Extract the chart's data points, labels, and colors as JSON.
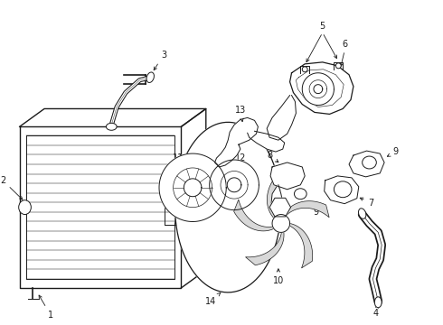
{
  "bg_color": "#ffffff",
  "line_color": "#1a1a1a",
  "fig_w": 4.9,
  "fig_h": 3.6,
  "dpi": 100,
  "lw": 0.7,
  "label_fs": 7
}
